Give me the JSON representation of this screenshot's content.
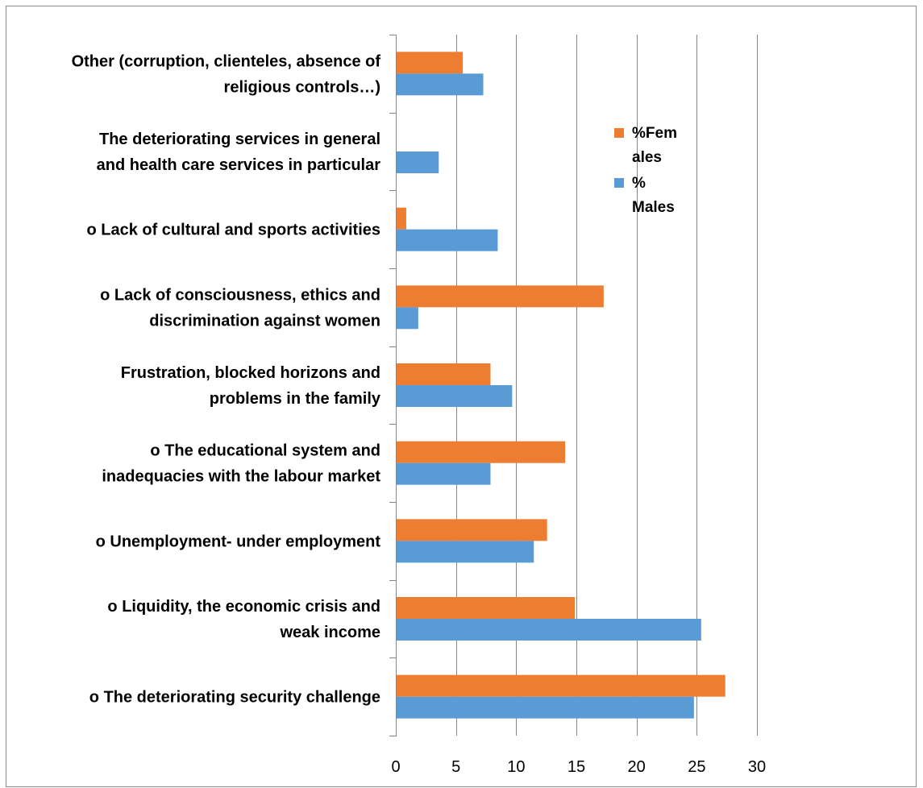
{
  "chart_data": {
    "type": "bar",
    "orientation": "horizontal",
    "categories": [
      "o   The deteriorating security challenge",
      "o   Liquidity, the economic crisis and weak income",
      "o   Unemployment- under employment",
      "o   The educational system and inadequacies with the labour market",
      "Frustration, blocked horizons and problems in the family",
      "o   Lack of consciousness, ethics and discrimination against women",
      "o   Lack of cultural and sports activities",
      "The deteriorating services in general and health care services in particular",
      "Other (corruption, clienteles, absence of religious controls…)"
    ],
    "category_lines": [
      [
        "o   The deteriorating security challenge"
      ],
      [
        "o   Liquidity, the economic crisis and",
        "weak income"
      ],
      [
        "o   Unemployment- under employment"
      ],
      [
        "o   The educational system and",
        "inadequacies with the labour market"
      ],
      [
        "Frustration, blocked horizons and",
        "problems in the family"
      ],
      [
        "o   Lack of consciousness, ethics and",
        "discrimination against women"
      ],
      [
        "o   Lack of cultural and sports activities"
      ],
      [
        "The deteriorating services in general",
        "and health care services in particular"
      ],
      [
        "Other (corruption, clienteles, absence of",
        "religious controls…)"
      ]
    ],
    "series": [
      {
        "name": "%Females",
        "legend_lines": [
          "%Fem",
          "ales"
        ],
        "color": "#ed7d31",
        "values": [
          27.3,
          14.8,
          12.5,
          14.0,
          7.8,
          17.2,
          0.8,
          0,
          5.5
        ]
      },
      {
        "name": "% Males",
        "legend_lines": [
          "%",
          "Males"
        ],
        "color": "#5b9bd5",
        "values": [
          24.7,
          25.3,
          11.4,
          7.8,
          9.6,
          1.8,
          8.4,
          3.5,
          7.2
        ]
      }
    ],
    "xlim": [
      0,
      30
    ],
    "xticks": [
      0,
      5,
      10,
      15,
      20,
      25,
      30
    ],
    "grid": true,
    "gridline_color": "#868686",
    "legend_position": "right",
    "title": "",
    "xlabel": "",
    "ylabel": ""
  }
}
